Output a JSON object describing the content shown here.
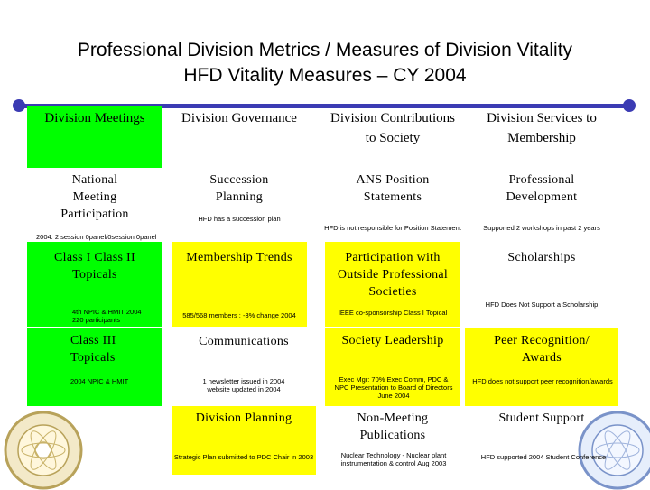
{
  "title": {
    "line1": "Professional Division Metrics / Measures of Division Vitality",
    "line2": "HFD Vitality Measures – CY 2004"
  },
  "colors": {
    "accent_rule": "#3b3bb3",
    "green": "#00ff00",
    "yellow": "#ffff00"
  },
  "headers": [
    "Division Meetings",
    "Division Governance",
    "Division Contributions to Society",
    "Division Services to Membership"
  ],
  "rows": [
    {
      "items": [
        "National Meeting Participation",
        "Succession Planning",
        "ANS Position Statements",
        "Professional Development"
      ],
      "notes": [
        "2004: 2 session 0panel/0session 0panel",
        "HFD has a succession plan",
        "HFD is not responsible for Position Statement",
        "Supported 2 workshops in past 2 years"
      ]
    },
    {
      "items": [
        "Class I Class II Topicals",
        "Membership Trends",
        "Participation with Outside Professional Societies",
        "Scholarships"
      ],
      "notes": [
        "4th NPIC & HMIT 2004 220 participants",
        "585/568 members : -3% change 2004",
        "IEEE co-sponsorship Class I Topical",
        "HFD Does Not Support a Scholarship"
      ]
    },
    {
      "items": [
        "Class III Topicals",
        "Communications",
        "Society Leadership",
        "Peer Recognition/ Awards"
      ],
      "notes": [
        "2004 NPIC & HMIT",
        "1 newsletter issued in 2004 website updated in 2004",
        "Exec Mgr: 70% Exec Comm, PDC & NPC Presentation to Board of Directors June 2004",
        "HFD does not support peer recognition/awards"
      ]
    },
    {
      "items": [
        "",
        "Division Planning",
        "Non-Meeting Publications",
        "Student Support"
      ],
      "notes": [
        "",
        "Strategic Plan submitted to PDC Chair in 2003",
        "Nuclear Technology - Nuclear plant instrumentation & control Aug 2003",
        "HFD supported 2004 Student Conference"
      ]
    }
  ],
  "seals": {
    "left": "golden-anniversary-seal",
    "right": "american-nuclear-society-seal"
  }
}
